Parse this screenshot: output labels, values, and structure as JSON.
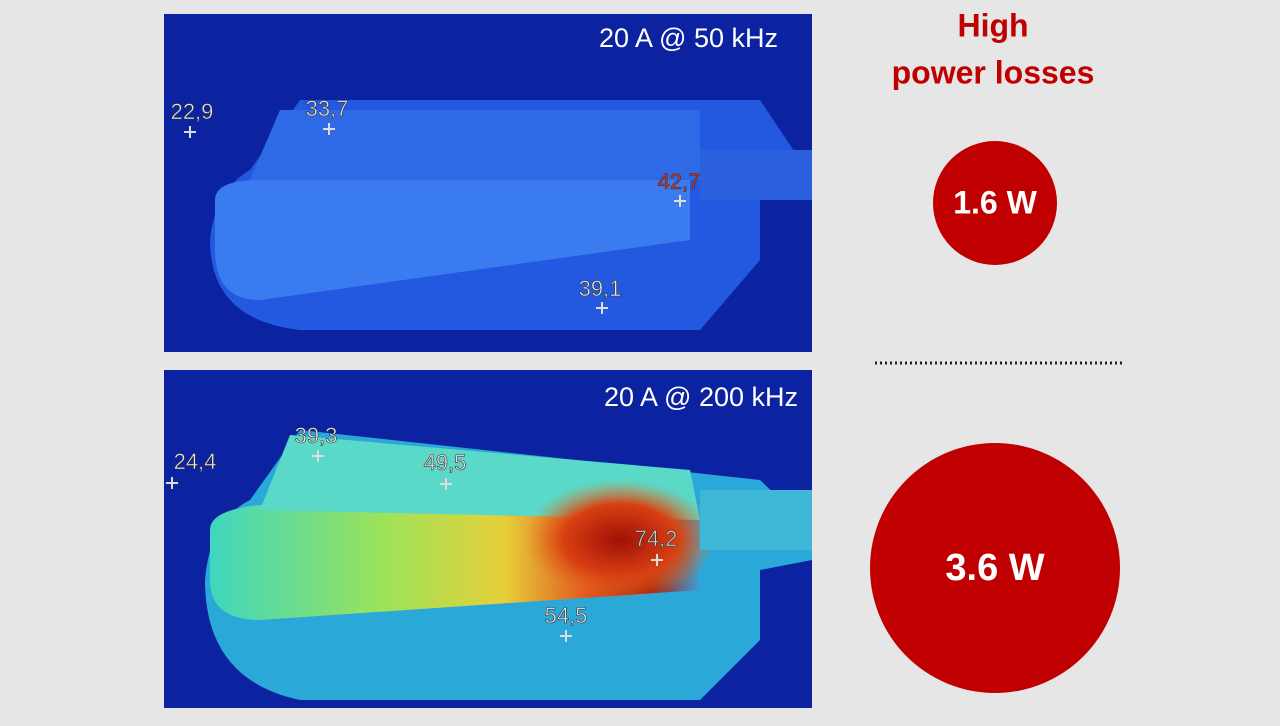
{
  "title": [
    "High",
    "power losses"
  ],
  "panels": [
    {
      "label": "20 A @ 50 kHz",
      "points": [
        "22,9",
        "33,7",
        "42,7",
        "39,1"
      ]
    },
    {
      "label": "20 A @ 200 kHz",
      "points": [
        "24,4",
        "39,3",
        "49,5",
        "74,2",
        "54,5"
      ]
    }
  ],
  "losses": [
    "1.6 W",
    "3.6 W"
  ]
}
